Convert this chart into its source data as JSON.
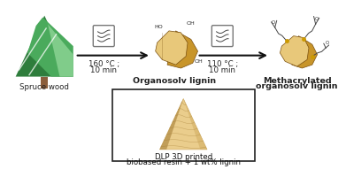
{
  "bg_color": "#ffffff",
  "tree_colors": {
    "dark_green": "#2e7d3c",
    "mid_green": "#4aaa5c",
    "light_green": "#80cc8a",
    "trunk": "#8B5E3C"
  },
  "arrow_color": "#111111",
  "box_color": "#777777",
  "wave_color": "#444444",
  "label1": "160 °C ;",
  "label1b": "10 min",
  "label2": "110 °C ;",
  "label2b": "10 min",
  "text_spruce": "Spruce wood",
  "text_organosolv": "Organosolv lignin",
  "text_meth1": "Methacrylated",
  "text_meth2": "organosolv lignin",
  "text_box1": "DLP 3D printed",
  "text_box2": "biobased resin + 1 wt% lignin",
  "lignin_light": "#e8c87a",
  "lignin_mid": "#c8952a",
  "lignin_dark": "#7a5010",
  "cone_light": "#e8c880",
  "cone_mid": "#c8a050",
  "cone_dark": "#a07830",
  "font_size_small": 5.5,
  "font_size_label": 6.2,
  "font_size_bold": 6.8
}
